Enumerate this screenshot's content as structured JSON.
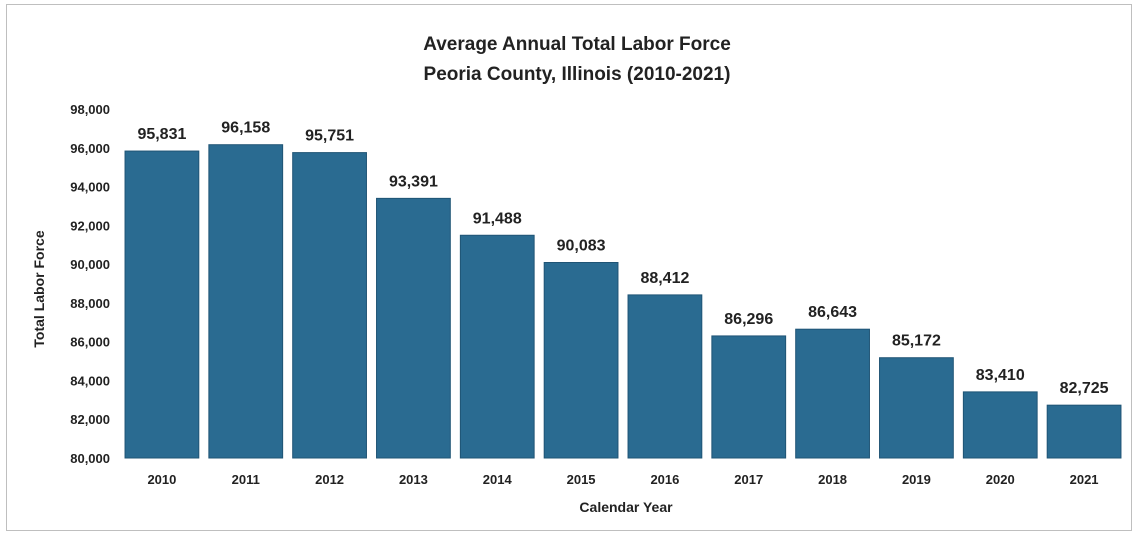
{
  "chart_data": {
    "type": "bar",
    "title": "Average Annual Total Labor Force",
    "subtitle": "Peoria County, Illinois (2010-2021)",
    "xlabel": "Calendar Year",
    "ylabel": "Total Labor Force",
    "categories": [
      "2010",
      "2011",
      "2012",
      "2013",
      "2014",
      "2015",
      "2016",
      "2017",
      "2018",
      "2019",
      "2020",
      "2021"
    ],
    "values": [
      95831,
      96158,
      95751,
      93391,
      91488,
      90083,
      88412,
      86296,
      86643,
      85172,
      83410,
      82725
    ],
    "data_labels": [
      "95,831",
      "96,158",
      "95,751",
      "93,391",
      "91,488",
      "90,083",
      "88,412",
      "86,296",
      "86,643",
      "85,172",
      "83,410",
      "82,725"
    ],
    "ylim": [
      80000,
      98000
    ],
    "yticks": [
      "80,000",
      "82,000",
      "84,000",
      "86,000",
      "88,000",
      "90,000",
      "92,000",
      "94,000",
      "96,000",
      "98,000"
    ],
    "grid": false,
    "legend": "none",
    "bar_color": "#2a6b91"
  }
}
